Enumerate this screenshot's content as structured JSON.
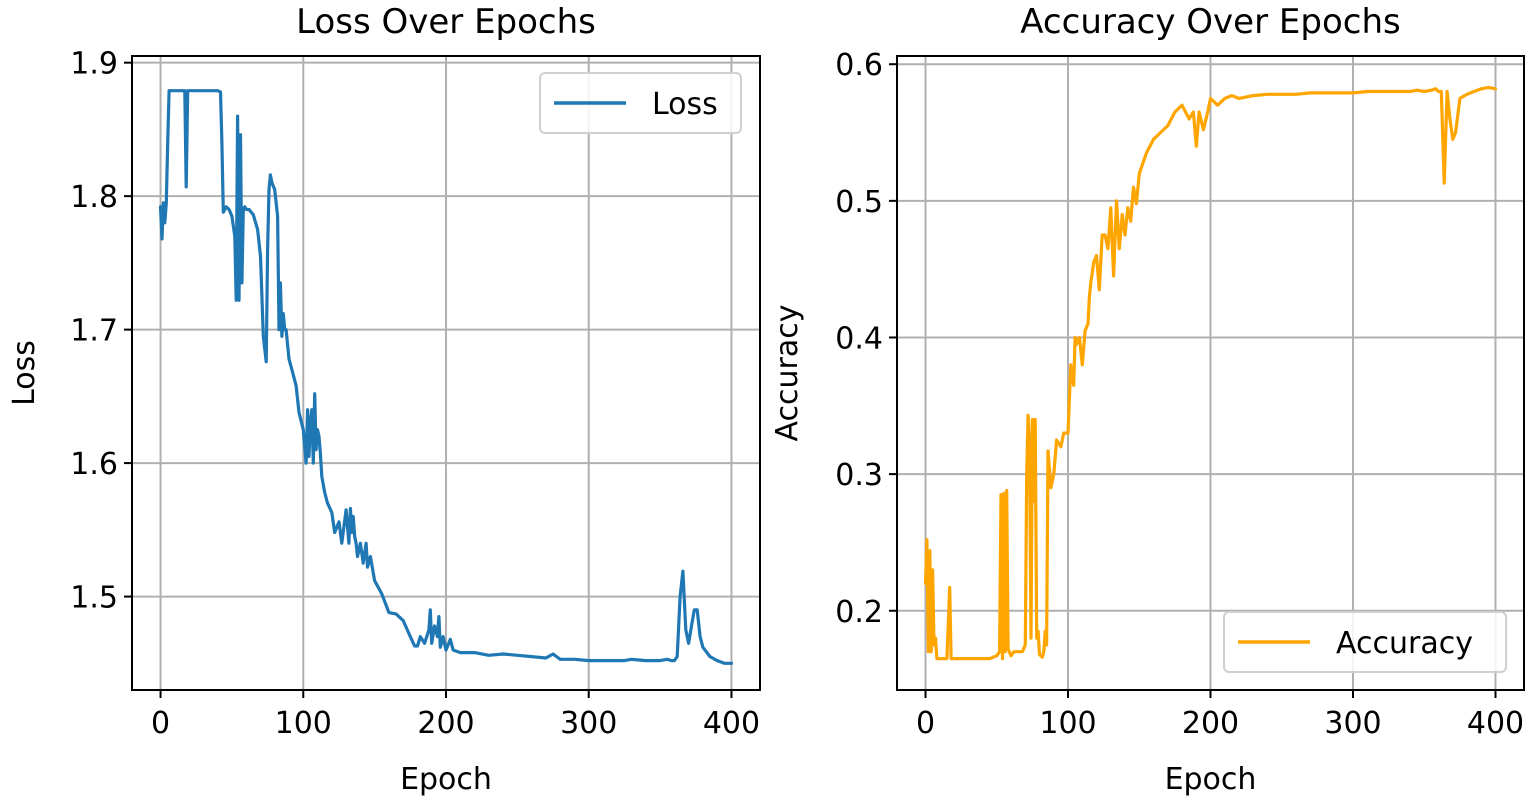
{
  "chart_data": [
    {
      "type": "line",
      "title": "Loss Over Epochs",
      "xlabel": "Epoch",
      "ylabel": "Loss",
      "xlim": [
        -20,
        420
      ],
      "ylim": [
        1.43,
        1.905
      ],
      "xticks": [
        0,
        100,
        200,
        300,
        400
      ],
      "xtick_labels": [
        "0",
        "100",
        "200",
        "300",
        "400"
      ],
      "yticks": [
        1.5,
        1.6,
        1.7,
        1.8,
        1.9
      ],
      "ytick_labels": [
        "1.5",
        "1.6",
        "1.7",
        "1.8",
        "1.9"
      ],
      "grid": true,
      "legend_position": "upper right",
      "series": [
        {
          "name": "Loss",
          "color": "#1f77b4",
          "x": [
            0,
            1,
            2,
            3,
            4,
            5,
            6,
            7,
            8,
            10,
            12,
            15,
            17,
            18,
            19,
            20,
            25,
            30,
            35,
            40,
            42,
            43,
            44,
            46,
            48,
            50,
            52,
            53,
            54,
            55,
            56,
            57,
            58,
            59,
            60,
            62,
            65,
            68,
            70,
            72,
            74,
            75,
            76,
            77,
            78,
            80,
            82,
            83,
            84,
            85,
            86,
            87,
            88,
            90,
            92,
            95,
            97,
            100,
            102,
            103,
            104,
            105,
            106,
            107,
            108,
            109,
            110,
            111,
            112,
            113,
            115,
            117,
            120,
            122,
            125,
            127,
            130,
            132,
            133,
            134,
            135,
            136,
            137,
            138,
            140,
            142,
            144,
            145,
            147,
            150,
            155,
            160,
            165,
            170,
            175,
            178,
            180,
            182,
            185,
            188,
            189,
            190,
            192,
            194,
            195,
            196,
            198,
            200,
            203,
            205,
            210,
            220,
            230,
            240,
            250,
            260,
            270,
            275,
            280,
            290,
            300,
            310,
            320,
            325,
            330,
            340,
            350,
            355,
            358,
            360,
            362,
            364,
            366,
            368,
            370,
            372,
            374,
            376,
            378,
            380,
            385,
            390,
            395,
            400
          ],
          "values": [
            1.792,
            1.768,
            1.795,
            1.78,
            1.795,
            1.84,
            1.879,
            1.879,
            1.879,
            1.879,
            1.879,
            1.879,
            1.879,
            1.807,
            1.879,
            1.879,
            1.879,
            1.879,
            1.879,
            1.879,
            1.878,
            1.84,
            1.788,
            1.792,
            1.79,
            1.785,
            1.77,
            1.722,
            1.86,
            1.722,
            1.846,
            1.735,
            1.79,
            1.792,
            1.79,
            1.79,
            1.786,
            1.775,
            1.755,
            1.695,
            1.676,
            1.76,
            1.805,
            1.816,
            1.81,
            1.805,
            1.785,
            1.7,
            1.735,
            1.695,
            1.712,
            1.7,
            1.7,
            1.678,
            1.67,
            1.658,
            1.638,
            1.625,
            1.6,
            1.64,
            1.605,
            1.63,
            1.64,
            1.6,
            1.652,
            1.61,
            1.625,
            1.62,
            1.607,
            1.59,
            1.578,
            1.57,
            1.563,
            1.548,
            1.556,
            1.54,
            1.565,
            1.54,
            1.566,
            1.548,
            1.56,
            1.545,
            1.54,
            1.53,
            1.54,
            1.525,
            1.54,
            1.522,
            1.53,
            1.512,
            1.502,
            1.488,
            1.487,
            1.482,
            1.47,
            1.463,
            1.463,
            1.47,
            1.465,
            1.475,
            1.49,
            1.465,
            1.478,
            1.47,
            1.485,
            1.462,
            1.47,
            1.46,
            1.468,
            1.46,
            1.458,
            1.458,
            1.456,
            1.457,
            1.456,
            1.455,
            1.454,
            1.457,
            1.453,
            1.453,
            1.452,
            1.452,
            1.452,
            1.452,
            1.453,
            1.452,
            1.452,
            1.453,
            1.452,
            1.452,
            1.455,
            1.5,
            1.519,
            1.475,
            1.465,
            1.478,
            1.49,
            1.49,
            1.47,
            1.462,
            1.455,
            1.452,
            1.45,
            1.45
          ]
        }
      ]
    },
    {
      "type": "line",
      "title": "Accuracy Over Epochs",
      "xlabel": "Epoch",
      "ylabel": "Accuracy",
      "xlim": [
        -20,
        420
      ],
      "ylim": [
        0.142,
        0.606
      ],
      "xticks": [
        0,
        100,
        200,
        300,
        400
      ],
      "xtick_labels": [
        "0",
        "100",
        "200",
        "300",
        "400"
      ],
      "yticks": [
        0.2,
        0.3,
        0.4,
        0.5,
        0.6
      ],
      "ytick_labels": [
        "0.2",
        "0.3",
        "0.4",
        "0.5",
        "0.6"
      ],
      "grid": true,
      "legend_position": "lower right",
      "series": [
        {
          "name": "Accuracy",
          "color": "#ffa500",
          "x": [
            0,
            1,
            2,
            3,
            4,
            5,
            6,
            7,
            8,
            10,
            15,
            17,
            18,
            19,
            20,
            25,
            30,
            35,
            40,
            45,
            50,
            52,
            53,
            54,
            55,
            56,
            57,
            58,
            60,
            62,
            65,
            68,
            70,
            71,
            72,
            73,
            74,
            75,
            76,
            77,
            78,
            79,
            80,
            82,
            83,
            84,
            85,
            86,
            88,
            90,
            92,
            95,
            97,
            100,
            102,
            104,
            105,
            106,
            108,
            110,
            112,
            114,
            115,
            116,
            118,
            120,
            122,
            124,
            126,
            128,
            130,
            132,
            134,
            136,
            138,
            140,
            142,
            144,
            146,
            148,
            150,
            155,
            160,
            165,
            170,
            175,
            180,
            185,
            188,
            190,
            192,
            195,
            198,
            200,
            205,
            210,
            215,
            220,
            230,
            240,
            250,
            260,
            270,
            280,
            290,
            300,
            310,
            320,
            330,
            340,
            345,
            350,
            355,
            358,
            360,
            362,
            364,
            366,
            368,
            370,
            372,
            375,
            380,
            385,
            390,
            395,
            400
          ],
          "values": [
            0.22,
            0.252,
            0.17,
            0.244,
            0.17,
            0.23,
            0.175,
            0.18,
            0.165,
            0.165,
            0.165,
            0.217,
            0.165,
            0.165,
            0.165,
            0.165,
            0.165,
            0.165,
            0.165,
            0.165,
            0.167,
            0.17,
            0.285,
            0.165,
            0.286,
            0.17,
            0.288,
            0.172,
            0.167,
            0.17,
            0.17,
            0.17,
            0.175,
            0.3,
            0.343,
            0.32,
            0.18,
            0.34,
            0.28,
            0.34,
            0.18,
            0.185,
            0.168,
            0.166,
            0.17,
            0.185,
            0.175,
            0.317,
            0.29,
            0.3,
            0.325,
            0.32,
            0.33,
            0.33,
            0.38,
            0.365,
            0.4,
            0.395,
            0.4,
            0.38,
            0.405,
            0.41,
            0.43,
            0.44,
            0.455,
            0.46,
            0.435,
            0.475,
            0.475,
            0.465,
            0.495,
            0.445,
            0.5,
            0.465,
            0.49,
            0.475,
            0.495,
            0.485,
            0.51,
            0.498,
            0.52,
            0.535,
            0.545,
            0.55,
            0.555,
            0.565,
            0.57,
            0.56,
            0.565,
            0.54,
            0.565,
            0.552,
            0.565,
            0.575,
            0.57,
            0.575,
            0.577,
            0.575,
            0.577,
            0.578,
            0.578,
            0.578,
            0.579,
            0.579,
            0.579,
            0.579,
            0.58,
            0.58,
            0.58,
            0.58,
            0.581,
            0.58,
            0.581,
            0.582,
            0.58,
            0.58,
            0.513,
            0.58,
            0.56,
            0.545,
            0.55,
            0.575,
            0.578,
            0.58,
            0.582,
            0.583,
            0.582
          ]
        }
      ]
    }
  ]
}
